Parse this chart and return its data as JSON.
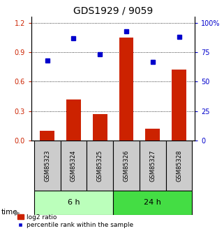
{
  "title": "GDS1929 / 9059",
  "samples": [
    "GSM85323",
    "GSM85324",
    "GSM85325",
    "GSM85326",
    "GSM85327",
    "GSM85328"
  ],
  "log2_ratio": [
    0.1,
    0.42,
    0.27,
    1.05,
    0.12,
    0.72
  ],
  "percentile_rank_pct": [
    68,
    87,
    73,
    93,
    67,
    88
  ],
  "bar_color": "#cc2200",
  "dot_color": "#0000cc",
  "left_yticks": [
    0,
    0.3,
    0.6,
    0.9,
    1.2
  ],
  "right_yticks": [
    0,
    25,
    50,
    75,
    100
  ],
  "left_ylim": [
    0,
    1.26
  ],
  "right_ylim": [
    0,
    105
  ],
  "group1_label": "6 h",
  "group2_label": "24 h",
  "group1_indices": [
    0,
    1,
    2
  ],
  "group2_indices": [
    3,
    4,
    5
  ],
  "group1_color": "#bbffbb",
  "group2_color": "#44dd44",
  "time_label": "time",
  "legend_bar_label": "log2 ratio",
  "legend_dot_label": "percentile rank within the sample",
  "bar_width": 0.55,
  "bg_color": "#ffffff",
  "tick_label_fontsize": 7,
  "sample_label_fontsize": 6,
  "group_label_fontsize": 8,
  "title_fontsize": 10
}
